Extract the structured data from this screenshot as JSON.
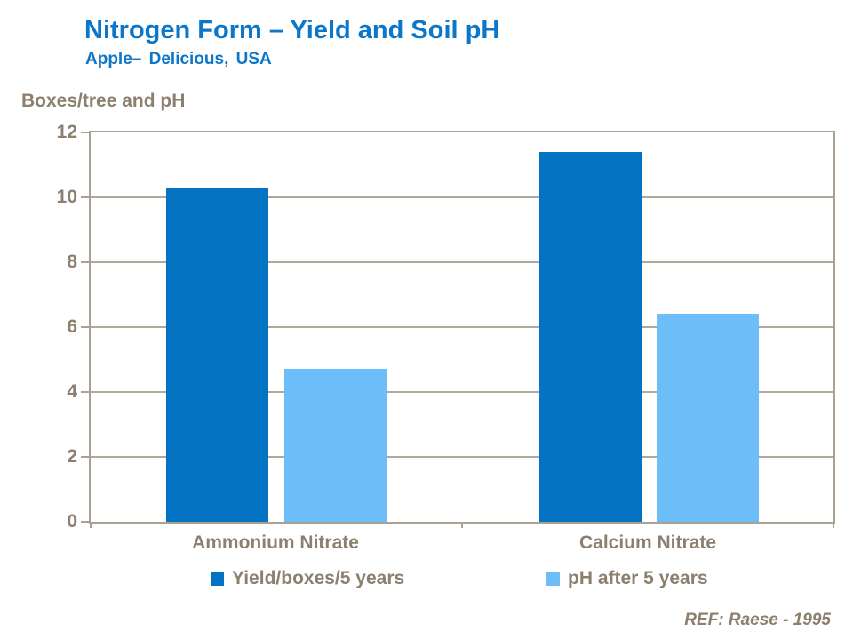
{
  "slide": {
    "title": "Nitrogen Form – Yield and Soil pH",
    "subtitle": "Apple– Delicious, USA",
    "axis_title": "Boxes/tree and pH",
    "ref": "REF: Raese - 1995"
  },
  "colors": {
    "title_blue": "#0c76c8",
    "yield_bar_blue": "#0473c4",
    "ph_bar_light_blue": "#6cbdf8",
    "text_brown_gray": "#8c7f6e",
    "grid_line": "#aba094"
  },
  "chart_data": {
    "type": "bar",
    "title": "Nitrogen Form – Yield and Soil pH",
    "subtitle": "Apple– Delicious, USA",
    "categories": [
      "Ammonium Nitrate",
      "Calcium Nitrate"
    ],
    "series": [
      {
        "name": "Yield/boxes/5 years",
        "values": [
          10.3,
          11.4
        ],
        "color": "#0473c4"
      },
      {
        "name": "pH after 5 years",
        "values": [
          4.7,
          6.4
        ],
        "color": "#6cbdf8"
      }
    ],
    "xlabel": "",
    "ylabel": "Boxes/tree and pH",
    "ylim": [
      0,
      12
    ],
    "yticks": [
      0,
      2,
      4,
      6,
      8,
      10,
      12
    ],
    "grid": "horizontal",
    "legend_position": "bottom",
    "annotation": "REF: Raese - 1995"
  }
}
